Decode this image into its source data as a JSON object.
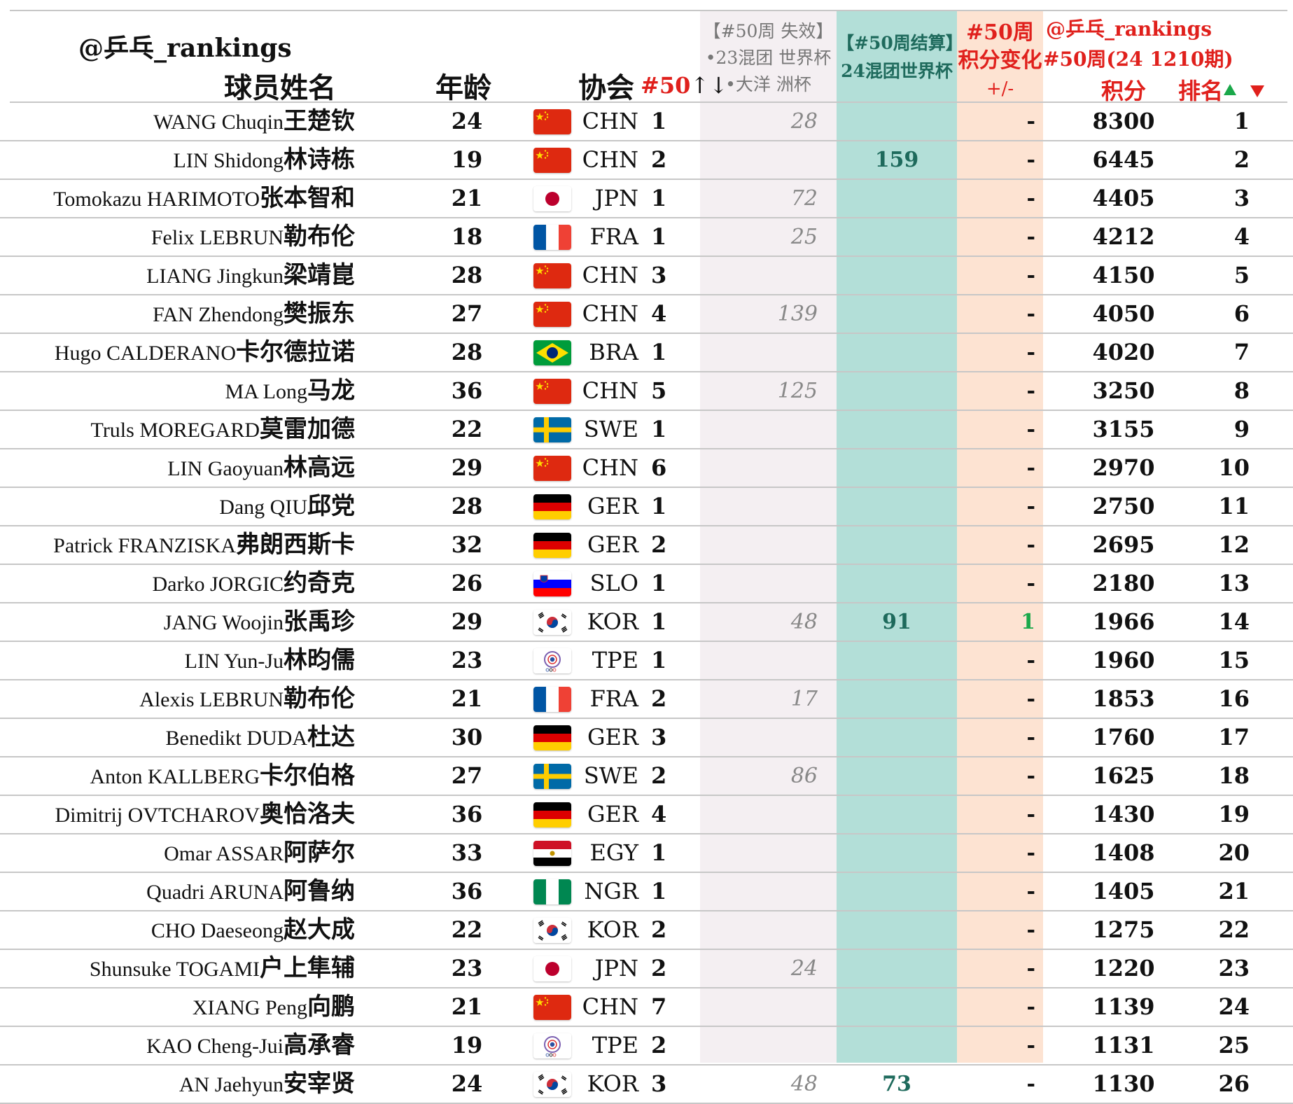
{
  "header": {
    "brand": "@乒乓_rankings",
    "name": "球员姓名",
    "age": "年龄",
    "assoc": "协会",
    "sort_label": "#50",
    "sort_arrows": "↑↓",
    "lost": [
      "【#50周 失效】",
      "•23混团 世界杯",
      "•大洋 洲杯"
    ],
    "settle": [
      "【#50周结算】",
      "24混团世界杯"
    ],
    "change": [
      "#50周",
      "积分变化",
      "+/-"
    ],
    "points_brand": "@乒乓_rankings",
    "points_week": "#50周(24 1210期)",
    "points": "积分",
    "rank": "排名"
  },
  "colors": {
    "red": "#e0201c",
    "green": "#1aa84a",
    "teal": "#1e6a5c"
  },
  "rows": [
    {
      "en": "WANG Chuqin",
      "zh": "王楚钦",
      "age": "24",
      "flag": "china-flag",
      "code": "CHN",
      "arank": "1",
      "lost": "28",
      "settle": "",
      "change": "-",
      "points": "8300",
      "rank": "1"
    },
    {
      "en": "LIN Shidong",
      "zh": "林诗栋",
      "age": "19",
      "flag": "china-flag",
      "code": "CHN",
      "arank": "2",
      "lost": "",
      "settle": "159",
      "change": "-",
      "points": "6445",
      "rank": "2"
    },
    {
      "en": "Tomokazu HARIMOTO",
      "zh": "张本智和",
      "age": "21",
      "flag": "japan-flag",
      "code": "JPN",
      "arank": "1",
      "lost": "72",
      "settle": "",
      "change": "-",
      "points": "4405",
      "rank": "3"
    },
    {
      "en": "Felix LEBRUN",
      "zh": "勒布伦",
      "age": "18",
      "flag": "france-flag",
      "code": "FRA",
      "arank": "1",
      "lost": "25",
      "settle": "",
      "change": "-",
      "points": "4212",
      "rank": "4"
    },
    {
      "en": "LIANG Jingkun",
      "zh": "梁靖崑",
      "age": "28",
      "flag": "china-flag",
      "code": "CHN",
      "arank": "3",
      "lost": "",
      "settle": "",
      "change": "-",
      "points": "4150",
      "rank": "5"
    },
    {
      "en": "FAN Zhendong",
      "zh": "樊振东",
      "age": "27",
      "flag": "china-flag",
      "code": "CHN",
      "arank": "4",
      "lost": "139",
      "settle": "",
      "change": "-",
      "points": "4050",
      "rank": "6"
    },
    {
      "en": "Hugo CALDERANO",
      "zh": "卡尔德拉诺",
      "age": "28",
      "flag": "brazil-flag",
      "code": "BRA",
      "arank": "1",
      "lost": "",
      "settle": "",
      "change": "-",
      "points": "4020",
      "rank": "7"
    },
    {
      "en": "MA Long",
      "zh": "马龙",
      "age": "36",
      "flag": "china-flag",
      "code": "CHN",
      "arank": "5",
      "lost": "125",
      "settle": "",
      "change": "-",
      "points": "3250",
      "rank": "8"
    },
    {
      "en": "Truls MOREGARD",
      "zh": "莫雷加德",
      "age": "22",
      "flag": "sweden-flag",
      "code": "SWE",
      "arank": "1",
      "lost": "",
      "settle": "",
      "change": "-",
      "points": "3155",
      "rank": "9"
    },
    {
      "en": "LIN Gaoyuan",
      "zh": "林高远",
      "age": "29",
      "flag": "china-flag",
      "code": "CHN",
      "arank": "6",
      "lost": "",
      "settle": "",
      "change": "-",
      "points": "2970",
      "rank": "10"
    },
    {
      "en": "Dang QIU",
      "zh": "邱党",
      "age": "28",
      "flag": "germany-flag",
      "code": "GER",
      "arank": "1",
      "lost": "",
      "settle": "",
      "change": "-",
      "points": "2750",
      "rank": "11"
    },
    {
      "en": "Patrick FRANZISKA",
      "zh": "弗朗西斯卡",
      "age": "32",
      "flag": "germany-flag",
      "code": "GER",
      "arank": "2",
      "lost": "",
      "settle": "",
      "change": "-",
      "points": "2695",
      "rank": "12"
    },
    {
      "en": "Darko JORGIC",
      "zh": "约奇克",
      "age": "26",
      "flag": "slovenia-flag",
      "code": "SLO",
      "arank": "1",
      "lost": "",
      "settle": "",
      "change": "-",
      "points": "2180",
      "rank": "13"
    },
    {
      "en": "JANG Woojin",
      "zh": "张禹珍",
      "age": "29",
      "flag": "korea-flag",
      "code": "KOR",
      "arank": "1",
      "lost": "48",
      "settle": "91",
      "change": "1",
      "points": "1966",
      "rank": "14"
    },
    {
      "en": "LIN Yun-Ju",
      "zh": "林昀儒",
      "age": "23",
      "flag": "chinese-taipei-flag",
      "code": "TPE",
      "arank": "1",
      "lost": "",
      "settle": "",
      "change": "-",
      "points": "1960",
      "rank": "15"
    },
    {
      "en": "Alexis LEBRUN",
      "zh": "勒布伦",
      "age": "21",
      "flag": "france-flag",
      "code": "FRA",
      "arank": "2",
      "lost": "17",
      "settle": "",
      "change": "-",
      "points": "1853",
      "rank": "16"
    },
    {
      "en": "Benedikt DUDA",
      "zh": "杜达",
      "age": "30",
      "flag": "germany-flag",
      "code": "GER",
      "arank": "3",
      "lost": "",
      "settle": "",
      "change": "-",
      "points": "1760",
      "rank": "17"
    },
    {
      "en": "Anton KALLBERG",
      "zh": "卡尔伯格",
      "age": "27",
      "flag": "sweden-flag",
      "code": "SWE",
      "arank": "2",
      "lost": "86",
      "settle": "",
      "change": "-",
      "points": "1625",
      "rank": "18"
    },
    {
      "en": "Dimitrij OVTCHAROV",
      "zh": "奥恰洛夫",
      "age": "36",
      "flag": "germany-flag",
      "code": "GER",
      "arank": "4",
      "lost": "",
      "settle": "",
      "change": "-",
      "points": "1430",
      "rank": "19"
    },
    {
      "en": "Omar ASSAR",
      "zh": "阿萨尔",
      "age": "33",
      "flag": "egypt-flag",
      "code": "EGY",
      "arank": "1",
      "lost": "",
      "settle": "",
      "change": "-",
      "points": "1408",
      "rank": "20"
    },
    {
      "en": "Quadri ARUNA",
      "zh": "阿鲁纳",
      "age": "36",
      "flag": "nigeria-flag",
      "code": "NGR",
      "arank": "1",
      "lost": "",
      "settle": "",
      "change": "-",
      "points": "1405",
      "rank": "21"
    },
    {
      "en": "CHO Daeseong",
      "zh": "赵大成",
      "age": "22",
      "flag": "korea-flag",
      "code": "KOR",
      "arank": "2",
      "lost": "",
      "settle": "",
      "change": "-",
      "points": "1275",
      "rank": "22"
    },
    {
      "en": "Shunsuke TOGAMI",
      "zh": "户上隼辅",
      "age": "23",
      "flag": "japan-flag",
      "code": "JPN",
      "arank": "2",
      "lost": "24",
      "settle": "",
      "change": "-",
      "points": "1220",
      "rank": "23"
    },
    {
      "en": "XIANG Peng",
      "zh": "向鹏",
      "age": "21",
      "flag": "china-flag",
      "code": "CHN",
      "arank": "7",
      "lost": "",
      "settle": "",
      "change": "-",
      "points": "1139",
      "rank": "24"
    },
    {
      "en": "KAO Cheng-Jui",
      "zh": "高承睿",
      "age": "19",
      "flag": "chinese-taipei-flag",
      "code": "TPE",
      "arank": "2",
      "lost": "",
      "settle": "",
      "change": "-",
      "points": "1131",
      "rank": "25"
    },
    {
      "en": "AN Jaehyun",
      "zh": "安宰贤",
      "age": "24",
      "flag": "korea-flag",
      "code": "KOR",
      "arank": "3",
      "lost": "48",
      "settle": "73",
      "change": "-",
      "points": "1130",
      "rank": "26"
    }
  ]
}
